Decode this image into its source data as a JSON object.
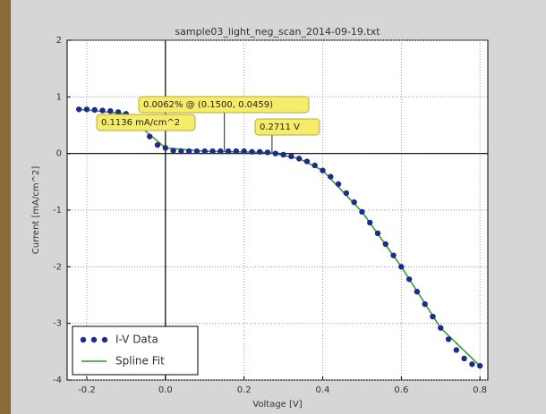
{
  "chart_data": {
    "type": "scatter",
    "title": "sample03_light_neg_scan_2014-09-19.txt",
    "x_label": "Voltage [V]",
    "y_label": "Current [mA/cm^2]",
    "xlim": [
      -0.25,
      0.82
    ],
    "ylim": [
      -4,
      2
    ],
    "xticks": [
      -0.2,
      {
        "value": 0,
        "label": "0.0"
      },
      0.2,
      0.4,
      0.6,
      0.8
    ],
    "yticks": [
      -4,
      -3,
      -2,
      -1,
      0,
      1,
      2
    ],
    "grid": true,
    "legend": "lower left",
    "series": [
      {
        "name": "I-V Data",
        "color": "#1f2a8c",
        "style": "markers",
        "x": [
          -0.22,
          -0.2,
          -0.18,
          -0.16,
          -0.14,
          -0.12,
          -0.1,
          -0.08,
          -0.06,
          -0.04,
          -0.02,
          0,
          0.02,
          0.04,
          0.06,
          0.08,
          0.1,
          0.12,
          0.14,
          0.16,
          0.18,
          0.2,
          0.22,
          0.24,
          0.26,
          0.28,
          0.3,
          0.32,
          0.34,
          0.36,
          0.38,
          0.4,
          0.42,
          0.44,
          0.46,
          0.48,
          0.5,
          0.52,
          0.54,
          0.56,
          0.58,
          0.6,
          0.62,
          0.64,
          0.66,
          0.68,
          0.7,
          0.72,
          0.74,
          0.76,
          0.78,
          0.8
        ],
        "values": [
          0.78,
          0.78,
          0.77,
          0.76,
          0.75,
          0.73,
          0.7,
          0.62,
          0.45,
          0.3,
          0.15,
          0.1,
          0.05,
          0.04,
          0.04,
          0.04,
          0.04,
          0.04,
          0.04,
          0.04,
          0.04,
          0.04,
          0.03,
          0.03,
          0.02,
          0,
          -0.02,
          -0.05,
          -0.09,
          -0.14,
          -0.21,
          -0.3,
          -0.41,
          -0.54,
          -0.7,
          -0.86,
          -1.03,
          -1.22,
          -1.41,
          -1.6,
          -1.8,
          -2,
          -2.22,
          -2.44,
          -2.66,
          -2.88,
          -3.08,
          -3.28,
          -3.47,
          -3.62,
          -3.72,
          -3.75
        ]
      },
      {
        "name": "Spline Fit",
        "color": "#2a9a2a",
        "style": "line",
        "x": [
          -0.22,
          -0.1,
          -0.06,
          0,
          0.1,
          0.26,
          0.34,
          0.4,
          0.5,
          0.6,
          0.7,
          0.8
        ],
        "values": [
          0.78,
          0.7,
          0.45,
          0.1,
          0.04,
          0.02,
          -0.09,
          -0.3,
          -1.03,
          -2,
          -3.08,
          -3.75
        ]
      }
    ],
    "annotations": [
      {
        "text": "0.0062% @ (0.1500, 0.0459)",
        "x": 0.15,
        "y": 0.0459
      },
      {
        "text": "0.1136 mA/cm^2",
        "x": 0,
        "y": 0.1136
      },
      {
        "text": "0.2711 V",
        "x": 0.2711,
        "y": 0
      }
    ]
  }
}
